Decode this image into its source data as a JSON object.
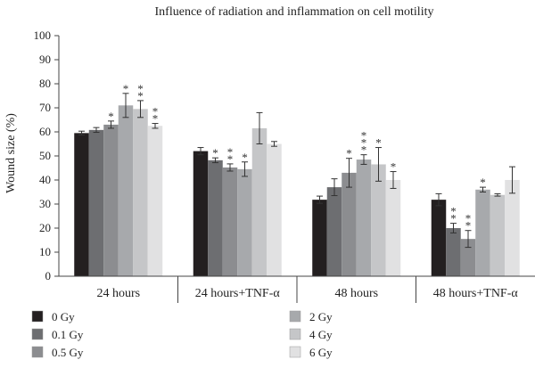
{
  "chart_data": {
    "type": "bar",
    "title": "Influence of radiation and inflammation on cell motility",
    "ylabel": "Wound size (%)",
    "xlabel": "",
    "ylim": [
      0,
      100
    ],
    "yticks": [
      "0",
      "10",
      "20",
      "30",
      "40",
      "50",
      "60",
      "70",
      "80",
      "90",
      "100"
    ],
    "categories": [
      "24 hours",
      "24 hours+TNF-α",
      "48 hours",
      "48 hours+TNF-α"
    ],
    "legend_position": "bottom",
    "series": [
      {
        "name": "0 Gy",
        "color": "#231f20",
        "values": [
          59.5,
          52.0,
          31.8,
          31.8
        ],
        "errors": [
          0.8,
          1.5,
          1.5,
          2.5
        ],
        "stars": [
          "",
          "",
          "",
          ""
        ]
      },
      {
        "name": "0.1 Gy",
        "color": "#6d6e71",
        "values": [
          60.8,
          48.2,
          37.0,
          20.0
        ],
        "errors": [
          1.0,
          1.0,
          3.5,
          2.0
        ],
        "stars": [
          "",
          "*",
          "",
          "**"
        ]
      },
      {
        "name": "0.5 Gy",
        "color": "#8c8d90",
        "values": [
          63.0,
          45.2,
          43.0,
          15.5
        ],
        "errors": [
          1.5,
          1.5,
          6.0,
          3.5
        ],
        "stars": [
          "*",
          "**",
          "*",
          "**"
        ]
      },
      {
        "name": "2 Gy",
        "color": "#a7a9ac",
        "values": [
          71.0,
          44.5,
          48.5,
          36.0
        ],
        "errors": [
          5.0,
          3.0,
          2.0,
          1.0
        ],
        "stars": [
          "*",
          "*",
          "***",
          "*"
        ]
      },
      {
        "name": "4 Gy",
        "color": "#c5c6c8",
        "values": [
          69.5,
          61.5,
          46.5,
          33.8
        ],
        "errors": [
          3.5,
          6.5,
          7.0,
          0.5
        ],
        "stars": [
          "**",
          "",
          "*",
          ""
        ]
      },
      {
        "name": "6 Gy",
        "color": "#e1e1e2",
        "values": [
          62.5,
          55.0,
          40.0,
          40.0
        ],
        "errors": [
          1.0,
          1.0,
          3.5,
          5.5
        ],
        "stars": [
          "**",
          "",
          "*",
          ""
        ]
      }
    ]
  }
}
